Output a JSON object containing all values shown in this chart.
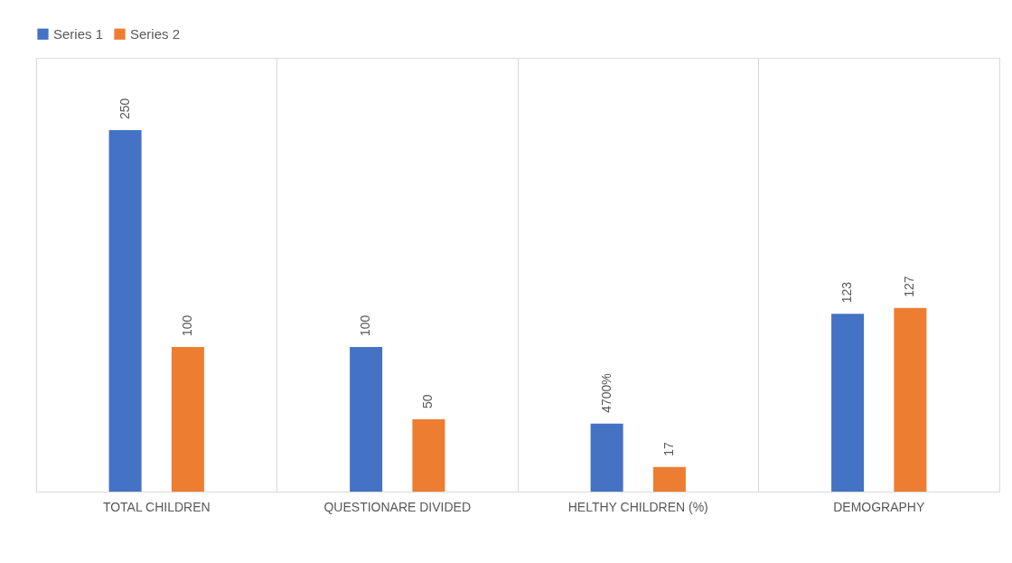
{
  "chart_data": {
    "type": "bar",
    "categories": [
      "TOTAL CHILDREN",
      "QUESTIONARE DIVIDED",
      "HELTHY CHILDREN (%)",
      "DEMOGRAPHY"
    ],
    "series": [
      {
        "name": "Series 1",
        "color": "#4472c4",
        "values": [
          250,
          100,
          47,
          123
        ],
        "value_labels": [
          "250",
          "100",
          "4700%",
          "123"
        ]
      },
      {
        "name": "Series 2",
        "color": "#ed7d31",
        "values": [
          100,
          50,
          17,
          127
        ],
        "value_labels": [
          "100",
          "50",
          "17",
          "127"
        ]
      }
    ],
    "ylim": [
      0,
      300
    ],
    "grid": "x",
    "legend": "top",
    "tick_labels": "x"
  }
}
